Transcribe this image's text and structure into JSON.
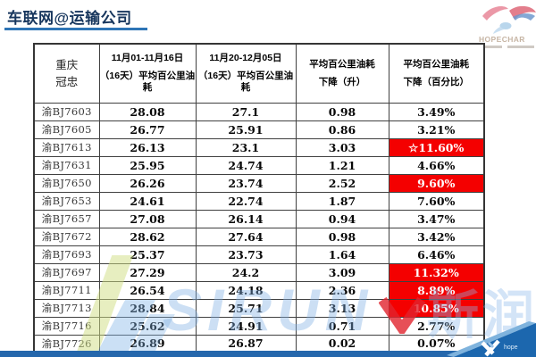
{
  "page": {
    "title": "车联网@运输公司"
  },
  "brand": {
    "logo_text": "HOPECHAR",
    "footer_text": "hope"
  },
  "watermark": {
    "text": "SIRUN",
    "cn": "斯润"
  },
  "table": {
    "corner_label": "重庆\n冠忠",
    "headers": [
      {
        "line1": "11月01-11月16日",
        "line2": "（16天）平均百公里油耗"
      },
      {
        "line1": "11月20-12月05日",
        "line2": "（16天）平均百公里油耗"
      },
      {
        "line1": "平均百公里油耗",
        "line2": "下降（升）"
      },
      {
        "line1": "平均百公里油耗",
        "line2": "下降（百分比）"
      }
    ],
    "rows": [
      {
        "plate": "渝BJ7603",
        "period1": "28.08",
        "period2": "27.1",
        "drop_liters": "0.98",
        "drop_percent": "3.49%",
        "highlight": false
      },
      {
        "plate": "渝BJ7605",
        "period1": "26.77",
        "period2": "25.91",
        "drop_liters": "0.86",
        "drop_percent": "3.21%",
        "highlight": false
      },
      {
        "plate": "渝BJ7613",
        "period1": "26.13",
        "period2": "23.1",
        "drop_liters": "3.03",
        "drop_percent": "☆11.60%",
        "highlight": true
      },
      {
        "plate": "渝BJ7631",
        "period1": "25.95",
        "period2": "24.74",
        "drop_liters": "1.21",
        "drop_percent": "4.66%",
        "highlight": false
      },
      {
        "plate": "渝BJ7650",
        "period1": "26.26",
        "period2": "23.74",
        "drop_liters": "2.52",
        "drop_percent": "9.60%",
        "highlight": true
      },
      {
        "plate": "渝BJ7653",
        "period1": "24.61",
        "period2": "22.74",
        "drop_liters": "1.87",
        "drop_percent": "7.60%",
        "highlight": false
      },
      {
        "plate": "渝BJ7657",
        "period1": "27.08",
        "period2": "26.14",
        "drop_liters": "0.94",
        "drop_percent": "3.47%",
        "highlight": false
      },
      {
        "plate": "渝BJ7672",
        "period1": "28.62",
        "period2": "27.64",
        "drop_liters": "0.98",
        "drop_percent": "3.42%",
        "highlight": false
      },
      {
        "plate": "渝BJ7693",
        "period1": "25.37",
        "period2": "23.73",
        "drop_liters": "1.64",
        "drop_percent": "6.46%",
        "highlight": false
      },
      {
        "plate": "渝BJ7697",
        "period1": "27.29",
        "period2": "24.2",
        "drop_liters": "3.09",
        "drop_percent": "11.32%",
        "highlight": true
      },
      {
        "plate": "渝BJ7711",
        "period1": "26.54",
        "period2": "24.18",
        "drop_liters": "2.36",
        "drop_percent": "8.89%",
        "highlight": true
      },
      {
        "plate": "渝BJ7713",
        "period1": "28.84",
        "period2": "25.71",
        "drop_liters": "3.13",
        "drop_percent": "10.85%",
        "highlight": true
      },
      {
        "plate": "渝BJ7716",
        "period1": "25.62",
        "period2": "24.91",
        "drop_liters": "0.71",
        "drop_percent": "2.77%",
        "highlight": false
      },
      {
        "plate": "渝BJ7726",
        "period1": "26.89",
        "period2": "26.87",
        "drop_liters": "0.02",
        "drop_percent": "0.07%",
        "highlight": false
      }
    ]
  },
  "colors": {
    "title": "#17365d",
    "underline": "#2e75b6",
    "highlight_red": "#f40000",
    "bottom_bar": "#2567ac"
  }
}
